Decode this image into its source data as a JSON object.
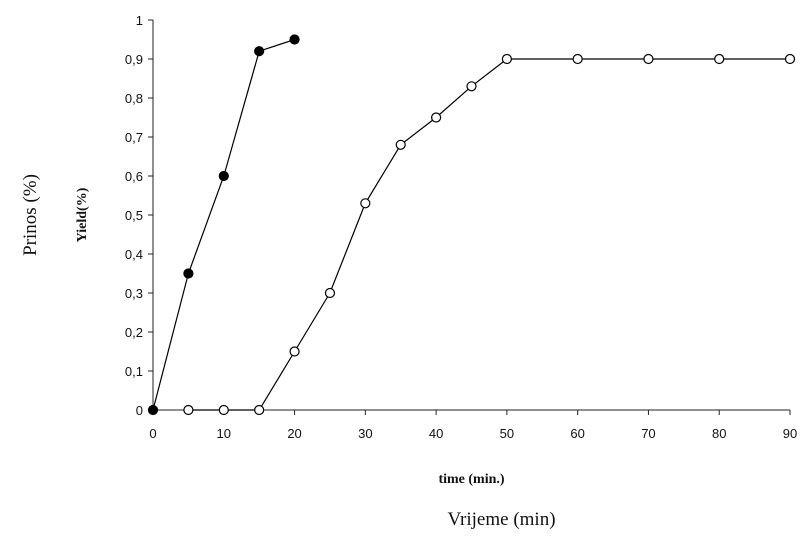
{
  "chart_data": {
    "type": "line",
    "xlabel": "time (min.)",
    "ylabel": "Yield(%)",
    "outer_xlabel": "Vrijeme (min)",
    "outer_ylabel": "Prinos (%)",
    "xlim": [
      0,
      90
    ],
    "ylim": [
      0,
      1
    ],
    "x_ticks": [
      0,
      10,
      20,
      30,
      40,
      50,
      60,
      70,
      80,
      90
    ],
    "x_tick_labels": [
      "0",
      "10",
      "20",
      "30",
      "40",
      "50",
      "60",
      "70",
      "80",
      "90"
    ],
    "y_ticks": [
      0,
      0.1,
      0.2,
      0.3,
      0.4,
      0.5,
      0.6,
      0.7,
      0.8,
      0.9,
      1
    ],
    "y_tick_labels": [
      "0",
      "0,1",
      "0,2",
      "0,3",
      "0,4",
      "0,5",
      "0,6",
      "0,7",
      "0,8",
      "0,9",
      "1"
    ],
    "grid": false,
    "series": [
      {
        "marker": "filled-circle",
        "color": "#000000",
        "points": [
          [
            0,
            0
          ],
          [
            5,
            0.35
          ],
          [
            10,
            0.6
          ],
          [
            15,
            0.92
          ],
          [
            20,
            0.95
          ]
        ]
      },
      {
        "marker": "open-circle",
        "color": "#000000",
        "points": [
          [
            5,
            0
          ],
          [
            10,
            0
          ],
          [
            15,
            0
          ],
          [
            20,
            0.15
          ],
          [
            25,
            0.3
          ],
          [
            30,
            0.53
          ],
          [
            35,
            0.68
          ],
          [
            40,
            0.75
          ],
          [
            45,
            0.83
          ],
          [
            50,
            0.9
          ],
          [
            60,
            0.9
          ],
          [
            70,
            0.9
          ],
          [
            80,
            0.9
          ],
          [
            90,
            0.9
          ]
        ]
      }
    ]
  }
}
